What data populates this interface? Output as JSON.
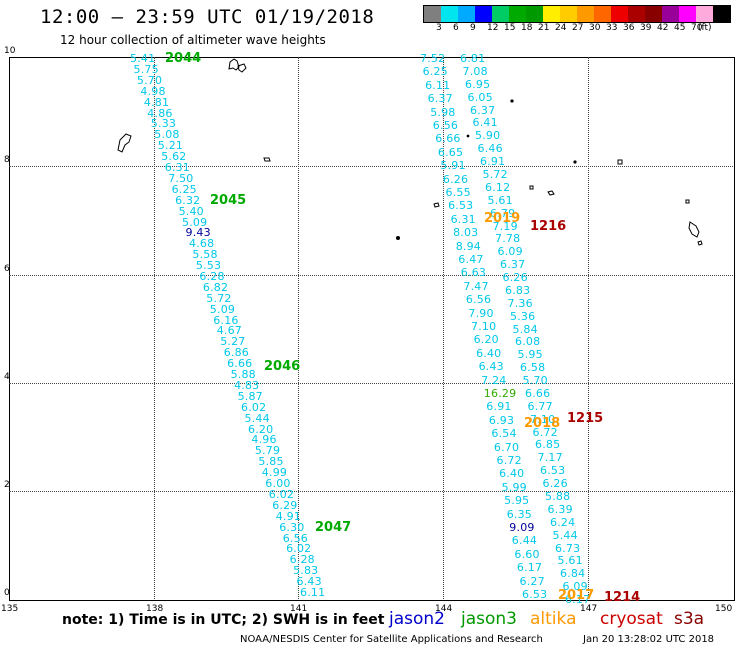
{
  "header": {
    "title": "12:00 – 23:59 UTC 01/19/2018",
    "subtitle": "12 hour collection of altimeter wave heights"
  },
  "color_scale": {
    "colors": [
      "#7f7f7f",
      "#00e5ee",
      "#00aaff",
      "#0000ff",
      "#00cc66",
      "#00aa00",
      "#009900",
      "#ffee00",
      "#ffcc00",
      "#ff9900",
      "#ff6600",
      "#ee0000",
      "#aa0000",
      "#880000",
      "#990099",
      "#ff00ff",
      "#ffaadd",
      "#000000"
    ],
    "labels": [
      "3",
      "6",
      "9",
      "12",
      "15",
      "18",
      "21",
      "24",
      "27",
      "30",
      "33",
      "36",
      "39",
      "42",
      "45",
      "70",
      "(ft)"
    ]
  },
  "axes": {
    "x_ticks": [
      "135",
      "138",
      "141",
      "144",
      "147",
      "150"
    ],
    "y_ticks": [
      "10",
      "8",
      "6",
      "4",
      "2",
      "0"
    ]
  },
  "colors": {
    "jason2": "#0000cc",
    "jason3": "#009900",
    "altika": "#ff9900",
    "cryosat": "#cc0000",
    "s3a": "#880000",
    "cyan": "#00c8e8",
    "green": "#00aa00"
  },
  "tracks": {
    "a": [
      "5.41",
      "5.75",
      "5.70",
      "4.98",
      "4.81",
      "4.86",
      "5.33",
      "5.08",
      "5.21",
      "5.62",
      "6.31",
      "7.50",
      "6.25",
      "6.32",
      "5.40",
      "5.09",
      "9.43",
      "4.68",
      "5.58",
      "5.53",
      "6.28",
      "6.82",
      "5.72",
      "5.09",
      "6.16",
      "4.67",
      "5.27",
      "6.86",
      "6.66",
      "5.88",
      "4.83",
      "5.87",
      "6.02",
      "5.44",
      "6.20",
      "4.96",
      "5.79",
      "5.85",
      "4.99",
      "6.00",
      "6.02",
      "6.29",
      "4.91",
      "6.30",
      "6.56",
      "6.02",
      "6.28",
      "5.83",
      "6.43",
      "6.11"
    ],
    "b": [
      "7.52",
      "6.25",
      "6.11",
      "6.37",
      "5.98",
      "6.56",
      "6.66",
      "6.65",
      "5.91",
      "6.26",
      "6.55",
      "6.53",
      "6.31",
      "8.03",
      "8.94",
      "6.47",
      "6.63",
      "7.47",
      "6.56",
      "7.90",
      "7.10",
      "6.20",
      "6.40",
      "6.43",
      "7.24",
      "16.29",
      "6.91",
      "6.93",
      "6.54",
      "6.70",
      "6.72",
      "6.40",
      "5.99",
      "5.95",
      "6.35",
      "9.09",
      "6.44",
      "6.60",
      "6.17",
      "6.27",
      "6.53"
    ],
    "c": [
      "6.81",
      "7.08",
      "6.95",
      "6.05",
      "6.37",
      "6.41",
      "5.90",
      "6.46",
      "6.91",
      "5.72",
      "6.12",
      "5.61",
      "6.79",
      "7.19",
      "7.78",
      "6.09",
      "6.37",
      "6.26",
      "6.83",
      "7.36",
      "5.36",
      "5.84",
      "6.08",
      "5.95",
      "6.58",
      "5.70",
      "6.66",
      "6.77",
      "7.10",
      "6.72",
      "6.85",
      "7.17",
      "6.53",
      "6.26",
      "5.88",
      "6.39",
      "6.24",
      "5.44",
      "6.73",
      "5.61",
      "6.84",
      "6.09",
      "6.17"
    ]
  },
  "passes": {
    "p2044": "2044",
    "p2045": "2045",
    "p2046": "2046",
    "p2047": "2047",
    "p2019": "2019",
    "p1216": "1216",
    "p2018": "2018",
    "p1215": "1215",
    "p2017": "2017",
    "p1214": "1214"
  },
  "footer": {
    "note": "note:  1) Time is in UTC;  2) SWH is in feet",
    "legend": [
      "jason2",
      "jason3",
      "altika",
      "cryosat",
      "s3a"
    ],
    "credit": "NOAA/NESDIS Center for Satellite Applications and Research",
    "timestamp": "Jan 20 13:28:02 UTC 2018"
  }
}
